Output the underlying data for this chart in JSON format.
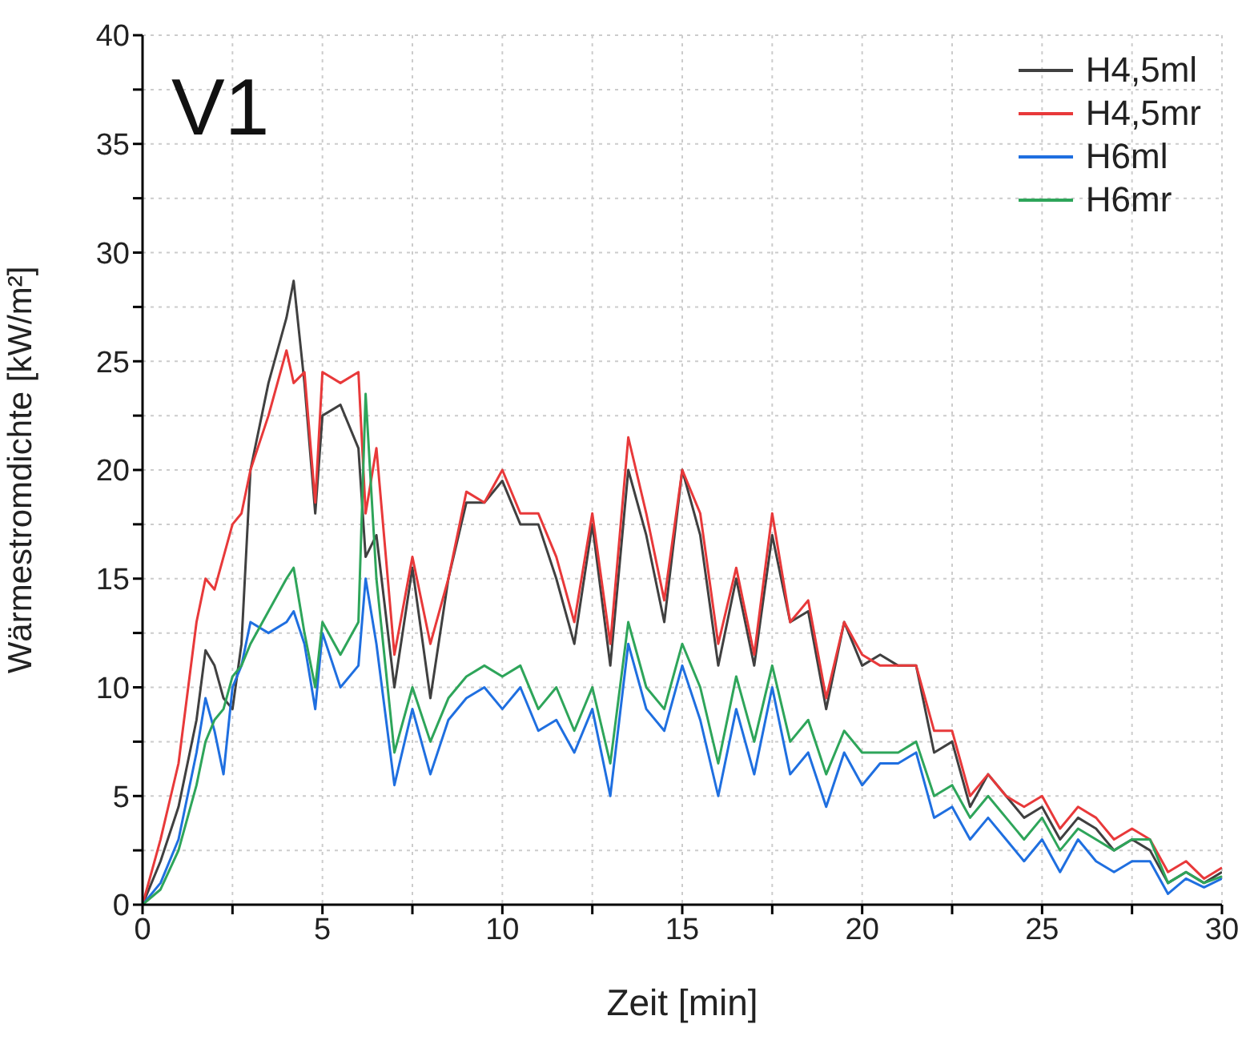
{
  "chart_data": {
    "type": "line",
    "title": "V1",
    "xlabel": "Zeit [min]",
    "ylabel": "Wärmestromdichte [kW/m²]",
    "x": [
      0,
      0.5,
      1,
      1.5,
      1.75,
      2,
      2.25,
      2.5,
      2.75,
      3,
      3.5,
      4,
      4.2,
      4.5,
      4.8,
      5,
      5.5,
      6,
      6.2,
      6.5,
      7,
      7.5,
      8,
      8.5,
      9,
      9.5,
      10,
      10.5,
      11,
      11.5,
      12,
      12.5,
      13,
      13.5,
      14,
      14.5,
      15,
      15.5,
      16,
      16.5,
      17,
      17.5,
      18,
      18.5,
      19,
      19.5,
      20,
      20.5,
      21,
      21.5,
      22,
      22.5,
      23,
      23.5,
      24,
      24.5,
      25,
      25.5,
      26,
      26.5,
      27,
      27.5,
      28,
      28.5,
      29,
      29.5,
      30
    ],
    "series": [
      {
        "name": "H4,5ml",
        "color": "#404040",
        "values": [
          0,
          2,
          4.5,
          8.5,
          11.7,
          11,
          9.5,
          9,
          12,
          20,
          24,
          27,
          28.7,
          24,
          18,
          22.5,
          23,
          21,
          16,
          17,
          10,
          15.5,
          9.5,
          15,
          18.5,
          18.5,
          19.5,
          17.5,
          17.5,
          15,
          12,
          17.5,
          11,
          20,
          17,
          13,
          20,
          17,
          11,
          15,
          11,
          17,
          13,
          13.5,
          9,
          13,
          11,
          11.5,
          11,
          11,
          7,
          7.5,
          4.5,
          6,
          5,
          4,
          4.5,
          3,
          4,
          3.5,
          2.5,
          3,
          2.5,
          1,
          1.5,
          1,
          1.5
        ]
      },
      {
        "name": "H4,5mr",
        "color": "#e8393a",
        "values": [
          0,
          3,
          6.5,
          13,
          15,
          14.5,
          16,
          17.5,
          18,
          20,
          22.5,
          25.5,
          24,
          24.5,
          18.5,
          24.5,
          24,
          24.5,
          18,
          21,
          11.5,
          16,
          12,
          15,
          19,
          18.5,
          20,
          18,
          18,
          16,
          13,
          18,
          12,
          21.5,
          18,
          14,
          20,
          18,
          12,
          15.5,
          11.5,
          18,
          13,
          14,
          9.5,
          13,
          11.5,
          11,
          11,
          11,
          8,
          8,
          5,
          6,
          5,
          4.5,
          5,
          3.5,
          4.5,
          4,
          3,
          3.5,
          3,
          1.5,
          2,
          1.2,
          1.7
        ]
      },
      {
        "name": "H6ml",
        "color": "#1f6fe0",
        "values": [
          0,
          1,
          3,
          7,
          9.5,
          8,
          6,
          10,
          11,
          13,
          12.5,
          13,
          13.5,
          12,
          9,
          12.5,
          10,
          11,
          15,
          12,
          5.5,
          9,
          6,
          8.5,
          9.5,
          10,
          9,
          10,
          8,
          8.5,
          7,
          9,
          5,
          12,
          9,
          8,
          11,
          8.5,
          5,
          9,
          6,
          10,
          6,
          7,
          4.5,
          7,
          5.5,
          6.5,
          6.5,
          7,
          4,
          4.5,
          3,
          4,
          3,
          2,
          3,
          1.5,
          3,
          2,
          1.5,
          2,
          2,
          0.5,
          1.2,
          0.8,
          1.2
        ]
      },
      {
        "name": "H6mr",
        "color": "#2ea55a",
        "values": [
          0,
          0.7,
          2.5,
          5.5,
          7.5,
          8.5,
          9,
          10.5,
          11,
          12,
          13.5,
          15,
          15.5,
          12.5,
          10,
          13,
          11.5,
          13,
          23.5,
          15,
          7,
          10,
          7.5,
          9.5,
          10.5,
          11,
          10.5,
          11,
          9,
          10,
          8,
          10,
          6.5,
          13,
          10,
          9,
          12,
          10,
          6.5,
          10.5,
          7.5,
          11,
          7.5,
          8.5,
          6,
          8,
          7,
          7,
          7,
          7.5,
          5,
          5.5,
          4,
          5,
          4,
          3,
          4,
          2.5,
          3.5,
          3,
          2.5,
          3,
          3,
          1,
          1.5,
          1,
          1.3
        ]
      }
    ],
    "xlim": [
      0,
      30
    ],
    "xticks": [
      0,
      {
        "value": 2.5,
        "label": null
      },
      5,
      {
        "value": 7.5,
        "label": null
      },
      10,
      {
        "value": 12.5,
        "label": null
      },
      15,
      {
        "value": 17.5,
        "label": null
      },
      20,
      {
        "value": 22.5,
        "label": null
      },
      25,
      {
        "value": 27.5,
        "label": null
      },
      30
    ],
    "ylim": [
      0,
      40
    ],
    "yticks": [
      0,
      {
        "value": 2.5,
        "label": null
      },
      5,
      {
        "value": 7.5,
        "label": null
      },
      10,
      {
        "value": 12.5,
        "label": null
      },
      15,
      {
        "value": 17.5,
        "label": null
      },
      20,
      {
        "value": 22.5,
        "label": null
      },
      25,
      {
        "value": 27.5,
        "label": null
      },
      30,
      {
        "value": 32.5,
        "label": null
      },
      35,
      {
        "value": 37.5,
        "label": null
      },
      40
    ],
    "grid": true,
    "legend": "top right",
    "marker": "none",
    "line_style": "solid"
  }
}
